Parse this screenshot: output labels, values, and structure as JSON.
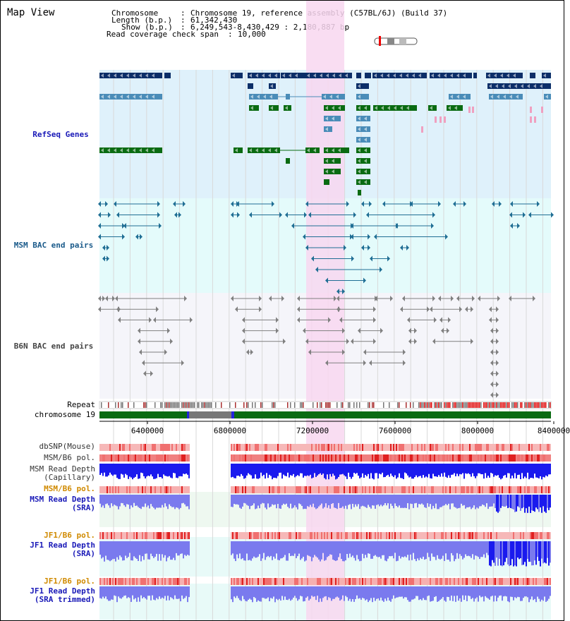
{
  "title": "Map View",
  "header": {
    "chromosome_key": "Chromosome",
    "chromosome_val": "Chromosome 19, reference assembly (C57BL/6J) (Build 37)",
    "length_key": "Length (b.p.)",
    "length_val": "61,342,430",
    "show_key": "Show (b.p.)",
    "show_val": "6,249,543-8,430,429 : 2,180,887 bp",
    "coverage_key": "Read coverage check span",
    "coverage_val": "10,000"
  },
  "tracks": {
    "refseq": "RefSeq Genes",
    "msm_bac": "MSM BAC end pairs",
    "b6n_bac": "B6N BAC end pairs",
    "repeat": "Repeat",
    "chromosome": "chromosome 19",
    "dbsnp": "dbSNP(Mouse)",
    "msm_b6_pol_1": "MSM/B6 pol.",
    "msm_depth_cap": "MSM Read Depth\n(Capillary)",
    "msm_b6_pol_2": "MSM/B6 pol.",
    "msm_depth_sra": "MSM Read Depth\n(SRA)",
    "jf1_b6_pol_1": "JF1/B6 pol.",
    "jf1_depth_sra": "JF1 Read Depth\n(SRA)",
    "jf1_b6_pol_2": "JF1/B6 pol.",
    "jf1_depth_trim": "JF1 Read Depth\n(SRA trimmed)"
  },
  "axis": {
    "ticks": [
      "6400000",
      "6800000",
      "7200000",
      "7600000",
      "8000000",
      "8400000"
    ]
  },
  "colors": {
    "refseq_bg": "#dff1fb",
    "msm_bac_bg": "#e4fbfb",
    "b6n_bac_bg": "#f5f5fa",
    "highlight": "#f8d7f0",
    "gene_dark": "#0c2e68",
    "gene_mid": "#4a8cb8",
    "gene_green": "#0a6b12",
    "bac_msm": "#1f6e94",
    "bac_b6n": "#808080",
    "depth_blue": "#1a1aee",
    "depth_light": "#7a7aee",
    "label_blue": "#1a1ab8",
    "label_orange": "#d08a00",
    "label_teal": "#1a5a8a"
  }
}
